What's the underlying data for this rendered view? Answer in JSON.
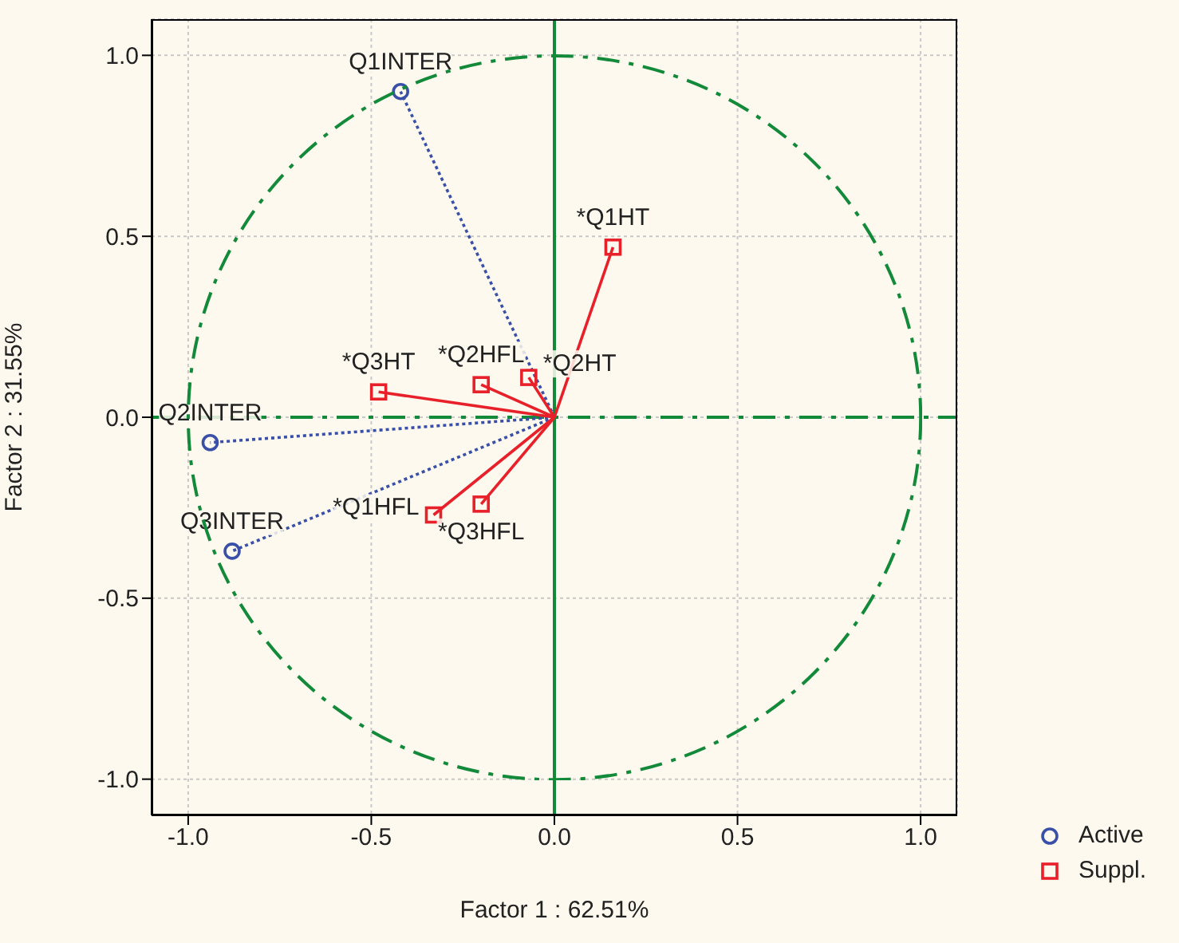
{
  "chart_data": {
    "type": "scatter",
    "xlabel": "Factor 1 : 62.51%",
    "ylabel": "Factor 2 : 31.55%",
    "xlim": [
      -1.1,
      1.1
    ],
    "ylim": [
      -1.1,
      1.1
    ],
    "xticks": [
      {
        "value": -1,
        "label": "-1.0"
      },
      {
        "value": -0.5,
        "label": "-0.5"
      },
      {
        "value": 0,
        "label": "0.0"
      },
      {
        "value": 0.5,
        "label": "0.5"
      },
      {
        "value": 1,
        "label": "1.0"
      }
    ],
    "yticks": [
      {
        "value": -1,
        "label": "-1.0"
      },
      {
        "value": -0.5,
        "label": "-0.5"
      },
      {
        "value": 0,
        "label": "0.0"
      },
      {
        "value": 0.5,
        "label": "0.5"
      },
      {
        "value": 1,
        "label": "1.0"
      }
    ],
    "grid": true,
    "legend": "bottom right",
    "series": [
      {
        "name": "Active",
        "color": "#3a50a8",
        "marker": "circle",
        "line_style": "dotted",
        "x": [
          -0.42,
          -0.94,
          -0.88
        ],
        "values": [
          0.9,
          -0.07,
          -0.37
        ]
      },
      {
        "name": "Suppl.",
        "color": "#e8202a",
        "marker": "square",
        "line_style": "solid",
        "x": [
          0.16,
          -0.07,
          -0.2,
          -0.48,
          -0.33,
          -0.2
        ],
        "values": [
          0.47,
          0.11,
          0.09,
          0.07,
          -0.27,
          -0.24
        ]
      }
    ],
    "annotations": [
      {
        "text": "Q1INTER",
        "x": -0.42,
        "y": 0.9
      },
      {
        "text": "Q2INTER",
        "x": -0.94,
        "y": -0.07
      },
      {
        "text": "Q3INTER",
        "x": -0.88,
        "y": -0.37
      },
      {
        "text": "*Q1HT",
        "x": 0.16,
        "y": 0.47
      },
      {
        "text": "*Q2HT",
        "x": -0.07,
        "y": 0.11
      },
      {
        "text": "*Q2HFL",
        "x": -0.2,
        "y": 0.09
      },
      {
        "text": "*Q3HT",
        "x": -0.48,
        "y": 0.07
      },
      {
        "text": "*Q1HFL",
        "x": -0.33,
        "y": -0.27
      },
      {
        "text": "*Q3HFL",
        "x": -0.2,
        "y": -0.24
      }
    ],
    "ref_lines": [
      {
        "axis": "x",
        "value": 0,
        "color": "#138a3a",
        "line_style": "solid"
      },
      {
        "axis": "y",
        "value": 0,
        "color": "#138a3a",
        "line_style": "dashed"
      }
    ]
  }
}
